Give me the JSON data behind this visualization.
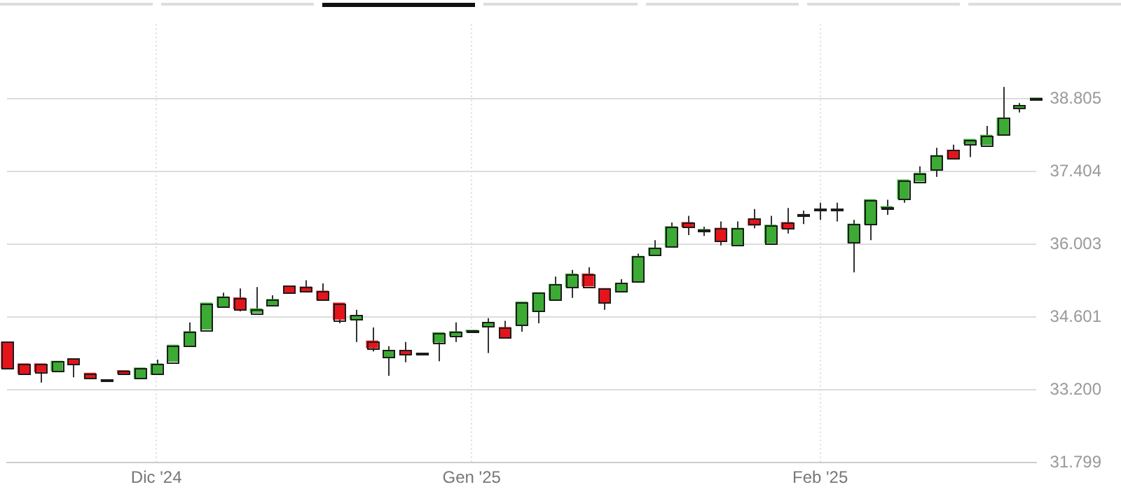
{
  "chart_data": {
    "type": "candlestick",
    "categories": [
      null,
      null,
      null,
      null,
      null,
      null,
      null,
      null,
      null,
      "Dic '24",
      null,
      null,
      null,
      null,
      null,
      null,
      null,
      null,
      null,
      null,
      null,
      null,
      null,
      null,
      null,
      null,
      null,
      null,
      "Gen '25",
      null,
      null,
      null,
      null,
      null,
      null,
      null,
      null,
      null,
      null,
      null,
      null,
      null,
      null,
      null,
      null,
      null,
      null,
      null,
      null,
      "Feb '25",
      null,
      null,
      null,
      null,
      null,
      null,
      null,
      null,
      null,
      null,
      null,
      null,
      null
    ],
    "ohlc": [
      [
        34.12,
        34.12,
        33.62,
        33.62
      ],
      [
        33.7,
        33.7,
        33.52,
        33.52
      ],
      [
        33.7,
        33.7,
        33.34,
        33.55
      ],
      [
        33.57,
        33.75,
        33.57,
        33.75
      ],
      [
        33.8,
        33.8,
        33.44,
        33.7
      ],
      [
        33.52,
        33.52,
        33.44,
        33.44
      ],
      [
        33.37,
        33.37,
        33.37,
        33.37
      ],
      [
        33.57,
        33.57,
        33.52,
        33.52
      ],
      [
        33.42,
        33.62,
        33.42,
        33.62
      ],
      [
        33.5,
        33.78,
        33.5,
        33.7
      ],
      [
        33.75,
        34.06,
        33.75,
        34.06
      ],
      [
        34.06,
        34.5,
        34.06,
        34.32
      ],
      [
        34.37,
        34.87,
        34.37,
        34.87
      ],
      [
        34.81,
        35.07,
        34.81,
        34.99
      ],
      [
        34.97,
        35.15,
        34.71,
        34.76
      ],
      [
        34.69,
        35.18,
        34.69,
        34.76
      ],
      [
        34.84,
        35.02,
        34.84,
        34.94
      ],
      [
        35.2,
        35.2,
        35.07,
        35.07
      ],
      [
        35.18,
        35.31,
        35.1,
        35.1
      ],
      [
        35.1,
        35.25,
        34.94,
        34.94
      ],
      [
        34.87,
        34.87,
        34.48,
        34.56
      ],
      [
        34.56,
        34.74,
        34.12,
        34.63
      ],
      [
        34.14,
        34.4,
        33.94,
        34.01
      ],
      [
        33.83,
        34.04,
        33.47,
        33.96
      ],
      [
        33.96,
        34.12,
        33.73,
        33.88
      ],
      [
        33.88,
        33.88,
        33.88,
        33.88
      ],
      [
        34.12,
        34.3,
        33.75,
        34.3
      ],
      [
        34.25,
        34.5,
        34.12,
        34.32
      ],
      [
        34.32,
        34.32,
        34.32,
        34.32
      ],
      [
        34.43,
        34.58,
        33.91,
        34.5
      ],
      [
        34.4,
        34.53,
        34.22,
        34.22
      ],
      [
        34.45,
        34.89,
        34.32,
        34.89
      ],
      [
        34.71,
        35.07,
        34.48,
        35.07
      ],
      [
        34.94,
        35.38,
        34.94,
        35.23
      ],
      [
        35.18,
        35.51,
        34.97,
        35.43
      ],
      [
        35.43,
        35.56,
        35.2,
        35.2
      ],
      [
        35.15,
        35.15,
        34.74,
        34.89
      ],
      [
        35.1,
        35.33,
        35.1,
        35.25
      ],
      [
        35.28,
        35.82,
        35.28,
        35.77
      ],
      [
        35.8,
        36.08,
        35.8,
        35.93
      ],
      [
        35.95,
        36.42,
        35.95,
        36.34
      ],
      [
        36.42,
        36.55,
        36.18,
        36.34
      ],
      [
        36.26,
        36.34,
        36.16,
        36.26
      ],
      [
        36.31,
        36.44,
        35.98,
        36.06
      ],
      [
        36.0,
        36.44,
        36.0,
        36.31
      ],
      [
        36.49,
        36.68,
        36.31,
        36.37
      ],
      [
        36.03,
        36.55,
        36.03,
        36.37
      ],
      [
        36.42,
        36.7,
        36.21,
        36.31
      ],
      [
        36.55,
        36.65,
        36.39,
        36.55
      ],
      [
        36.65,
        36.8,
        36.47,
        36.65
      ],
      [
        36.65,
        36.8,
        36.44,
        36.65
      ],
      [
        36.03,
        36.47,
        35.46,
        36.39
      ],
      [
        36.39,
        36.86,
        36.08,
        36.86
      ],
      [
        36.7,
        36.86,
        36.57,
        36.7
      ],
      [
        36.88,
        37.24,
        36.8,
        37.24
      ],
      [
        37.22,
        37.5,
        37.22,
        37.37
      ],
      [
        37.45,
        37.86,
        37.3,
        37.71
      ],
      [
        37.81,
        37.92,
        37.66,
        37.66
      ],
      [
        37.94,
        38.02,
        37.68,
        38.02
      ],
      [
        37.92,
        38.28,
        37.92,
        38.1
      ],
      [
        38.1,
        39.03,
        38.1,
        38.43
      ],
      [
        38.61,
        38.72,
        38.54,
        38.67
      ],
      [
        38.79,
        38.79,
        38.79,
        38.79
      ]
    ],
    "colors": [
      "#e5141b",
      "#e5141b",
      "#e5141b",
      "#3cab34",
      "#e5141b",
      "#e5141b",
      "#3cab34",
      "#e5141b",
      "#3cab34",
      "#3cab34",
      "#3cab34",
      "#3cab34",
      "#3cab34",
      "#3cab34",
      "#e5141b",
      "#3cab34",
      "#3cab34",
      "#e5141b",
      "#e5141b",
      "#e5141b",
      "#e5141b",
      "#3cab34",
      "#e5141b",
      "#3cab34",
      "#e5141b",
      "#3cab34",
      "#3cab34",
      "#3cab34",
      "#3cab34",
      "#3cab34",
      "#e5141b",
      "#3cab34",
      "#3cab34",
      "#3cab34",
      "#3cab34",
      "#e5141b",
      "#e5141b",
      "#3cab34",
      "#3cab34",
      "#3cab34",
      "#3cab34",
      "#e5141b",
      "#3cab34",
      "#e5141b",
      "#3cab34",
      "#e5141b",
      "#3cab34",
      "#e5141b",
      "#3cab34",
      "#3cab34",
      "#3cab34",
      "#3cab34",
      "#3cab34",
      "#3cab34",
      "#3cab34",
      "#3cab34",
      "#3cab34",
      "#e5141b",
      "#3cab34",
      "#3cab34",
      "#3cab34",
      "#3cab34",
      "#3cab34"
    ],
    "ylim": [
      31.799,
      40.24
    ],
    "yticks": [
      31.799,
      {
        "value": 33.2,
        "label": "33.200"
      },
      34.601,
      36.003,
      37.404,
      38.805
    ],
    "grid": true,
    "legend": false
  }
}
